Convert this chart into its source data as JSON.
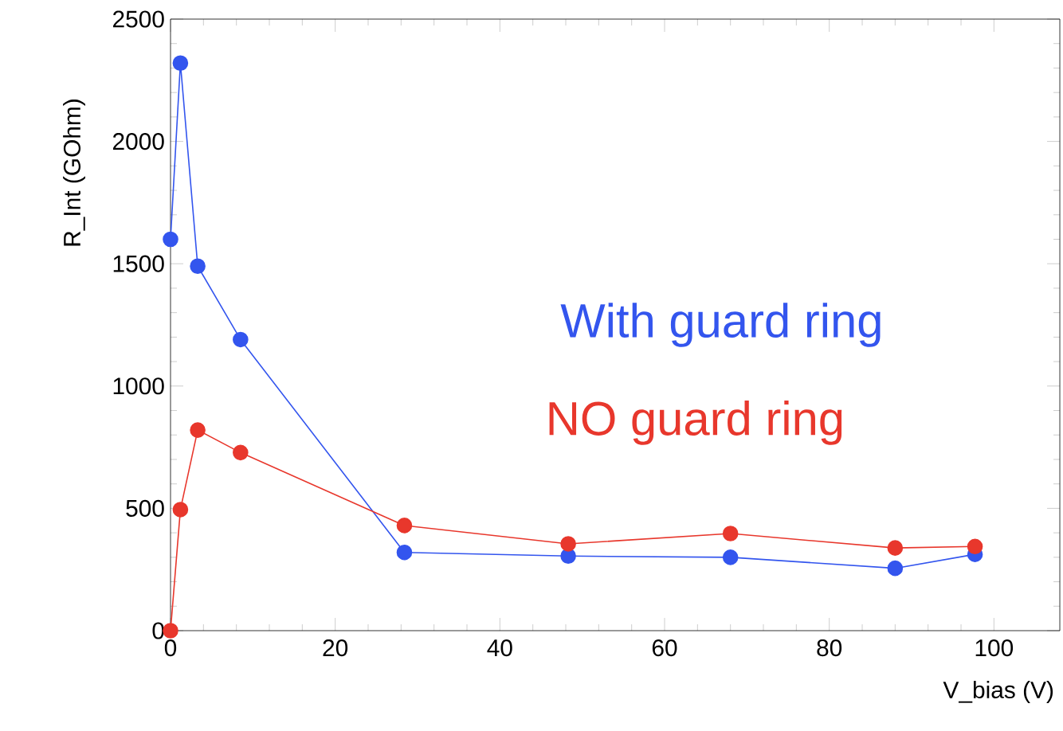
{
  "chart_data": {
    "type": "line",
    "xlabel": "V_bias (V)",
    "ylabel": "R_Int (GOhm)",
    "xlim": [
      0,
      108
    ],
    "ylim": [
      0,
      2500
    ],
    "xticks": [
      0,
      20,
      40,
      60,
      80,
      100
    ],
    "yticks": [
      0,
      500,
      1000,
      1500,
      2000,
      2500
    ],
    "marker": "circle",
    "line_style": "solid",
    "grid": false,
    "legend": false,
    "series": [
      {
        "name": "With guard ring",
        "color": "#3355ee",
        "x": [
          0,
          1.2,
          3.3,
          8.5,
          28.4,
          48.3,
          68,
          88,
          97.7
        ],
        "values": [
          1600,
          2320,
          1490,
          1190,
          320,
          305,
          300,
          255,
          312
        ]
      },
      {
        "name": "NO   guard ring",
        "color": "#e8372c",
        "x": [
          0,
          1.2,
          3.3,
          8.5,
          28.4,
          48.3,
          68,
          88,
          97.7
        ],
        "values": [
          0,
          495,
          820,
          728,
          430,
          355,
          397,
          338,
          344
        ]
      }
    ]
  }
}
